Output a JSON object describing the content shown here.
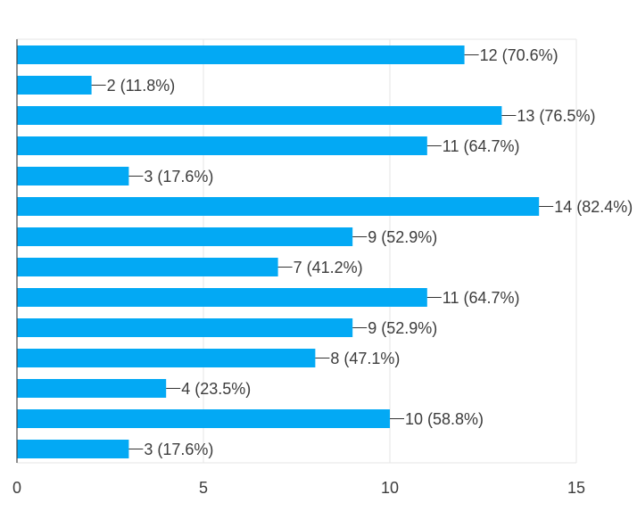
{
  "chart_data": {
    "type": "bar",
    "orientation": "horizontal",
    "values": [
      12,
      2,
      13,
      11,
      3,
      14,
      9,
      7,
      11,
      9,
      8,
      4,
      10,
      3
    ],
    "data_labels": [
      "12 (70.6%)",
      "2 (11.8%)",
      "13 (76.5%)",
      "11 (64.7%)",
      "3 (17.6%)",
      "14 (82.4%)",
      "9 (52.9%)",
      "7 (41.2%)",
      "11 (64.7%)",
      "9 (52.9%)",
      "8 (47.1%)",
      "4 (23.5%)",
      "10 (58.8%)",
      "3 (17.6%)"
    ],
    "xlim": [
      0,
      15
    ],
    "x_ticks": [
      "0",
      "5",
      "10",
      "15"
    ],
    "grid": true,
    "colors": {
      "bar": "#03a9f4",
      "grid": "#e6e6e6",
      "axis": "#444444",
      "label_line": "#333333",
      "text": "#3c3c3c"
    }
  }
}
